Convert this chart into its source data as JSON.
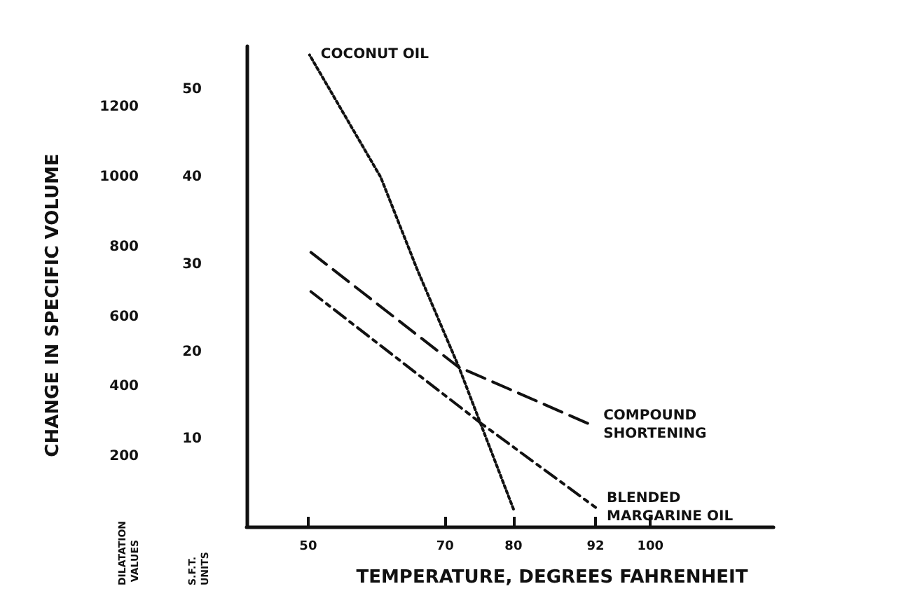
{
  "chart_data": {
    "type": "line",
    "xlabel": "TEMPERATURE, DEGREES FAHRENHEIT",
    "ylabel": "S.F.T. UNITS",
    "y2label": "DILATATION VALUES",
    "annotations": [
      "CHANGE IN SPECIFIC VOLUME"
    ],
    "xlim": [
      41,
      118
    ],
    "xticks": [
      50,
      70,
      80,
      92,
      100
    ],
    "ylim": [
      0,
      55
    ],
    "yticks": [
      10,
      20,
      30,
      40,
      50
    ],
    "y2lim": [
      0,
      1375
    ],
    "y2ticks": [
      200,
      400,
      600,
      800,
      1000,
      1200
    ],
    "grid": false,
    "legend": false,
    "marker": "none",
    "series": [
      {
        "name": "COCONUT OIL",
        "color": "#111111",
        "line_style": "dotted",
        "x": [
          80,
          72,
          65.9,
          60.6,
          50.2
        ],
        "values": [
          2,
          18.3,
          29.5,
          40,
          54
        ]
      },
      {
        "name": "COMPOUND SHORTENING",
        "color": "#111111",
        "line_style": "dashed",
        "x": [
          50.4,
          71.9,
          91.5
        ],
        "values": [
          31.4,
          18.3,
          11.6
        ]
      },
      {
        "name": "BLENDED MARGARINE OIL",
        "color": "#111111",
        "line_style": "dashed",
        "x": [
          50.4,
          75.3,
          92
        ],
        "values": [
          26.9,
          11.8,
          2.2
        ]
      }
    ]
  }
}
